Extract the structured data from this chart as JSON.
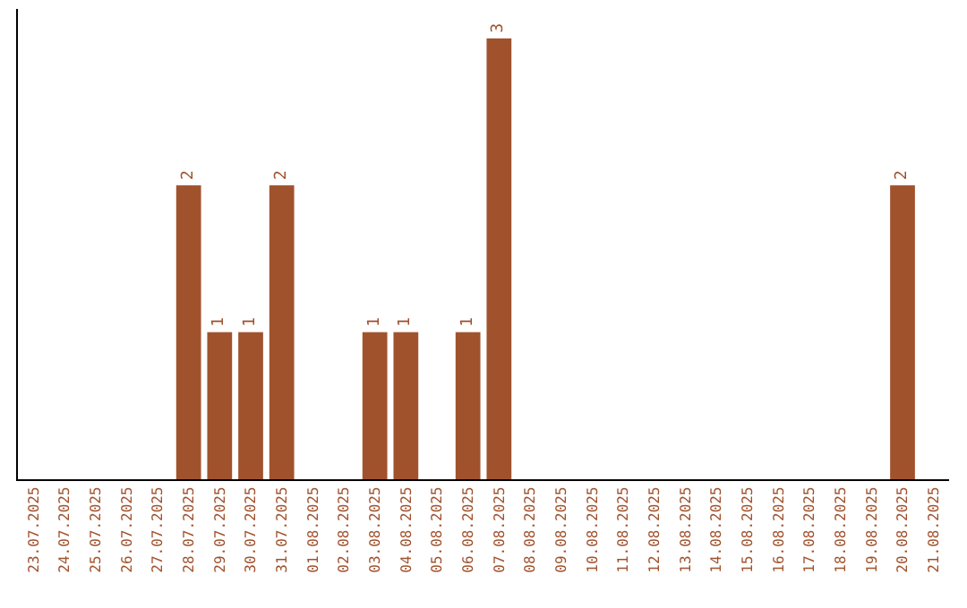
{
  "chart_data": {
    "type": "bar",
    "color": "#a0522d",
    "categories": [
      "23.07.2025",
      "24.07.2025",
      "25.07.2025",
      "26.07.2025",
      "27.07.2025",
      "28.07.2025",
      "29.07.2025",
      "30.07.2025",
      "31.07.2025",
      "01.08.2025",
      "02.08.2025",
      "03.08.2025",
      "04.08.2025",
      "05.08.2025",
      "06.08.2025",
      "07.08.2025",
      "08.08.2025",
      "09.08.2025",
      "10.08.2025",
      "11.08.2025",
      "12.08.2025",
      "13.08.2025",
      "14.08.2025",
      "15.08.2025",
      "16.08.2025",
      "17.08.2025",
      "18.08.2025",
      "19.08.2025",
      "20.08.2025",
      "21.08.2025"
    ],
    "values": [
      0,
      0,
      0,
      0,
      0,
      2,
      1,
      1,
      2,
      0,
      0,
      1,
      1,
      0,
      1,
      3,
      0,
      0,
      0,
      0,
      0,
      0,
      0,
      0,
      0,
      0,
      0,
      0,
      2,
      0
    ],
    "value_labels": [
      null,
      null,
      null,
      null,
      null,
      "2",
      "1",
      "1",
      "2",
      null,
      null,
      "1",
      "1",
      null,
      "1",
      "3",
      null,
      null,
      null,
      null,
      null,
      null,
      null,
      null,
      null,
      null,
      null,
      null,
      "2",
      null
    ],
    "ylim": [
      0,
      3.2
    ],
    "tick_labels": "x"
  }
}
